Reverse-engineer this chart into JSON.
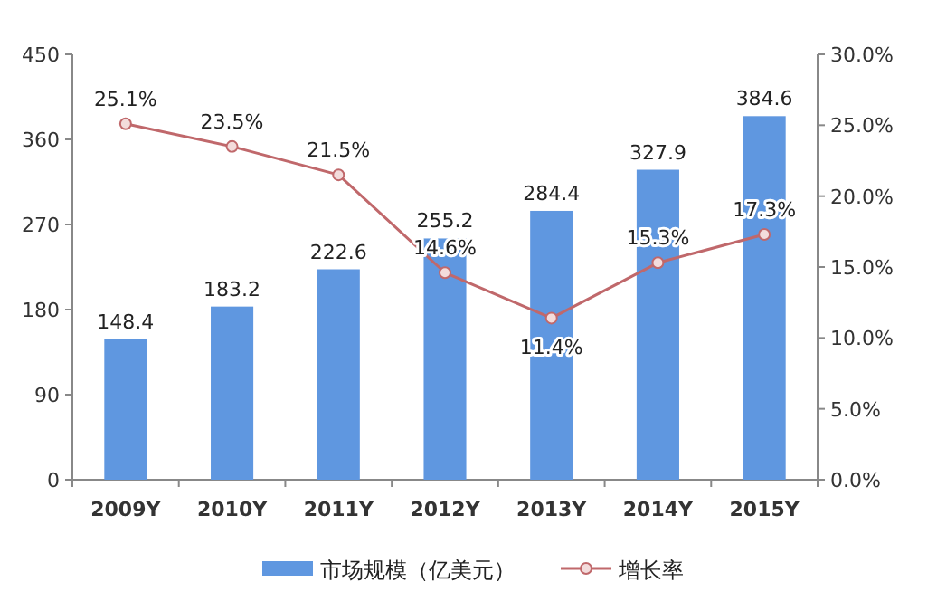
{
  "chart_data": {
    "type": "bar",
    "categories": [
      "2009Y",
      "2010Y",
      "2011Y",
      "2012Y",
      "2013Y",
      "2014Y",
      "2015Y"
    ],
    "series": [
      {
        "name": "市场规模（亿美元）",
        "color": "#5f97e0",
        "values": [
          148.4,
          183.2,
          222.6,
          255.2,
          284.4,
          327.9,
          384.6
        ]
      },
      {
        "name": "增长率",
        "type": "line",
        "axis": "y2",
        "color": "#c0686b",
        "marker": "circle",
        "values": [
          25.1,
          23.5,
          21.5,
          14.6,
          11.4,
          15.3,
          17.3
        ],
        "value_labels": [
          "25.1%",
          "23.5%",
          "21.5%",
          "14.6%",
          "11.4%",
          "15.3%",
          "17.3%"
        ]
      }
    ],
    "ylim": [
      0,
      450
    ],
    "yticks": [
      0,
      90,
      180,
      270,
      360,
      450
    ],
    "y2lim": [
      0,
      30
    ],
    "y2ticks": [
      {
        "value": 0,
        "label": "0.0%"
      },
      {
        "value": 5,
        "label": "5.0%"
      },
      {
        "value": 10,
        "label": "10.0%"
      },
      {
        "value": 15,
        "label": "15.0%"
      },
      {
        "value": 20,
        "label": "20.0%"
      },
      {
        "value": 25,
        "label": "25.0%"
      },
      {
        "value": 30,
        "label": "30.0%"
      }
    ],
    "data_labels": true,
    "grid": false,
    "legend": "bottom"
  }
}
